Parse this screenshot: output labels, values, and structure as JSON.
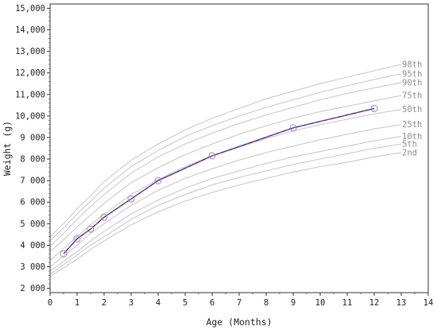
{
  "chart_data": {
    "type": "line",
    "xlabel": "Age (Months)",
    "ylabel": "Weight (g)",
    "xlim": [
      0,
      14
    ],
    "ylim": [
      1800,
      15200
    ],
    "x_ticks": [
      0,
      1,
      2,
      3,
      4,
      5,
      6,
      7,
      8,
      9,
      10,
      11,
      12,
      13,
      14
    ],
    "y_ticks": [
      {
        "value": 2000,
        "label": "2 000"
      },
      {
        "value": 3000,
        "label": "3 000"
      },
      {
        "value": 4000,
        "label": "4 000"
      },
      {
        "value": 5000,
        "label": "5 000"
      },
      {
        "value": 6000,
        "label": "6 000"
      },
      {
        "value": 7000,
        "label": "7 000"
      },
      {
        "value": 8000,
        "label": "8 000"
      },
      {
        "value": 9000,
        "label": "9 000"
      },
      {
        "value": 10000,
        "label": "10,000"
      },
      {
        "value": 11000,
        "label": "11,000"
      },
      {
        "value": 12000,
        "label": "12,000"
      },
      {
        "value": 13000,
        "label": "13,000"
      },
      {
        "value": 14000,
        "label": "14,000"
      },
      {
        "value": 15000,
        "label": "15,000"
      }
    ],
    "grid": false,
    "percentile_color": "#c9c9cf",
    "percentile_label_color": "#8c8c8c",
    "percentile_x": [
      0,
      0.5,
      1,
      1.5,
      2,
      3,
      4,
      5,
      6,
      7,
      8,
      9,
      10,
      11,
      12,
      13
    ],
    "percentiles": [
      {
        "name": "98th",
        "values": [
          4400,
          5000,
          5700,
          6300,
          6950,
          7950,
          8700,
          9350,
          9900,
          10350,
          10800,
          11150,
          11500,
          11800,
          12100,
          12400
        ]
      },
      {
        "name": "95th",
        "values": [
          4200,
          4800,
          5450,
          6050,
          6650,
          7650,
          8400,
          9050,
          9550,
          10000,
          10400,
          10750,
          11100,
          11400,
          11700,
          11950
        ]
      },
      {
        "name": "90th",
        "values": [
          3950,
          4550,
          5200,
          5800,
          6350,
          7350,
          8100,
          8700,
          9200,
          9650,
          10050,
          10400,
          10750,
          11050,
          11300,
          11550
        ]
      },
      {
        "name": "75th",
        "values": [
          3700,
          4250,
          4850,
          5400,
          5950,
          6900,
          7600,
          8200,
          8700,
          9150,
          9550,
          9900,
          10200,
          10450,
          10700,
          10950
        ]
      },
      {
        "name": "50th",
        "values": [
          3300,
          3850,
          4400,
          4950,
          5450,
          6350,
          7050,
          7650,
          8150,
          8550,
          8950,
          9300,
          9600,
          9850,
          10100,
          10300
        ]
      },
      {
        "name": "25th",
        "values": [
          3000,
          3500,
          4000,
          4550,
          5000,
          5850,
          6550,
          7100,
          7550,
          7950,
          8300,
          8600,
          8900,
          9150,
          9400,
          9600
        ]
      },
      {
        "name": "10th",
        "values": [
          2800,
          3250,
          3700,
          4200,
          4650,
          5450,
          6100,
          6650,
          7100,
          7450,
          7800,
          8100,
          8350,
          8600,
          8850,
          9050
        ]
      },
      {
        "name": "5th",
        "values": [
          2650,
          3100,
          3550,
          4000,
          4400,
          5200,
          5850,
          6350,
          6800,
          7150,
          7450,
          7750,
          8000,
          8250,
          8500,
          8700
        ]
      },
      {
        "name": "2nd",
        "values": [
          2550,
          2950,
          3350,
          3800,
          4200,
          4950,
          5550,
          6050,
          6450,
          6800,
          7100,
          7400,
          7650,
          7850,
          8100,
          8300
        ]
      }
    ],
    "measured": {
      "color": "#2b2b8c",
      "overlay_color": "#cc3355",
      "marker_color": "#9a87b4",
      "points": [
        {
          "x": 0.5,
          "y": 3600
        },
        {
          "x": 1,
          "y": 4300
        },
        {
          "x": 1.5,
          "y": 4750
        },
        {
          "x": 2,
          "y": 5300
        },
        {
          "x": 3,
          "y": 6150
        },
        {
          "x": 4,
          "y": 7000
        },
        {
          "x": 6,
          "y": 8150
        },
        {
          "x": 9,
          "y": 9450
        },
        {
          "x": 12,
          "y": 10350
        }
      ]
    }
  }
}
